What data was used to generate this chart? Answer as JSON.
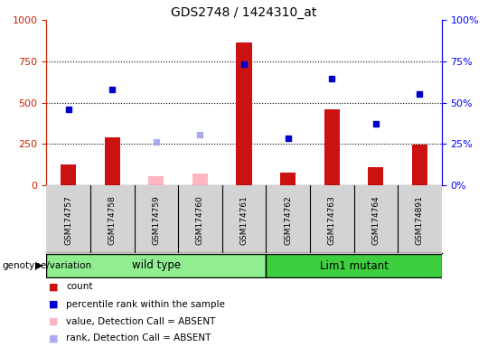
{
  "title": "GDS2748 / 1424310_at",
  "samples": [
    "GSM174757",
    "GSM174758",
    "GSM174759",
    "GSM174760",
    "GSM174761",
    "GSM174762",
    "GSM174763",
    "GSM174764",
    "GSM174891"
  ],
  "count_values": [
    125,
    290,
    null,
    null,
    865,
    75,
    460,
    110,
    245
  ],
  "count_absent": [
    null,
    null,
    55,
    70,
    null,
    null,
    null,
    null,
    null
  ],
  "percentile_values": [
    46,
    58,
    null,
    null,
    73,
    28.5,
    64.5,
    37,
    55
  ],
  "percentile_absent": [
    null,
    null,
    26.5,
    30.5,
    null,
    null,
    null,
    null,
    null
  ],
  "ylim_left": [
    0,
    1000
  ],
  "ylim_right": [
    0,
    100
  ],
  "yticks_left": [
    0,
    250,
    500,
    750,
    1000
  ],
  "yticks_right": [
    0,
    25,
    50,
    75,
    100
  ],
  "groups": [
    {
      "label": "wild type",
      "start": 0,
      "end": 4,
      "color": "#90ee90"
    },
    {
      "label": "Lim1 mutant",
      "start": 5,
      "end": 8,
      "color": "#3ecf3e"
    }
  ],
  "group_label": "genotype/variation",
  "bar_color": "#cc1111",
  "bar_absent_color": "#ffb6c1",
  "point_color": "#0000cc",
  "point_absent_color": "#aaaaee",
  "background_color": "#d3d3d3",
  "plot_bg_color": "#ffffff",
  "bar_width": 0.35,
  "legend_items": [
    {
      "label": "count",
      "color": "#cc1111"
    },
    {
      "label": "percentile rank within the sample",
      "color": "#0000cc"
    },
    {
      "label": "value, Detection Call = ABSENT",
      "color": "#ffb6c1"
    },
    {
      "label": "rank, Detection Call = ABSENT",
      "color": "#aaaaee"
    }
  ]
}
